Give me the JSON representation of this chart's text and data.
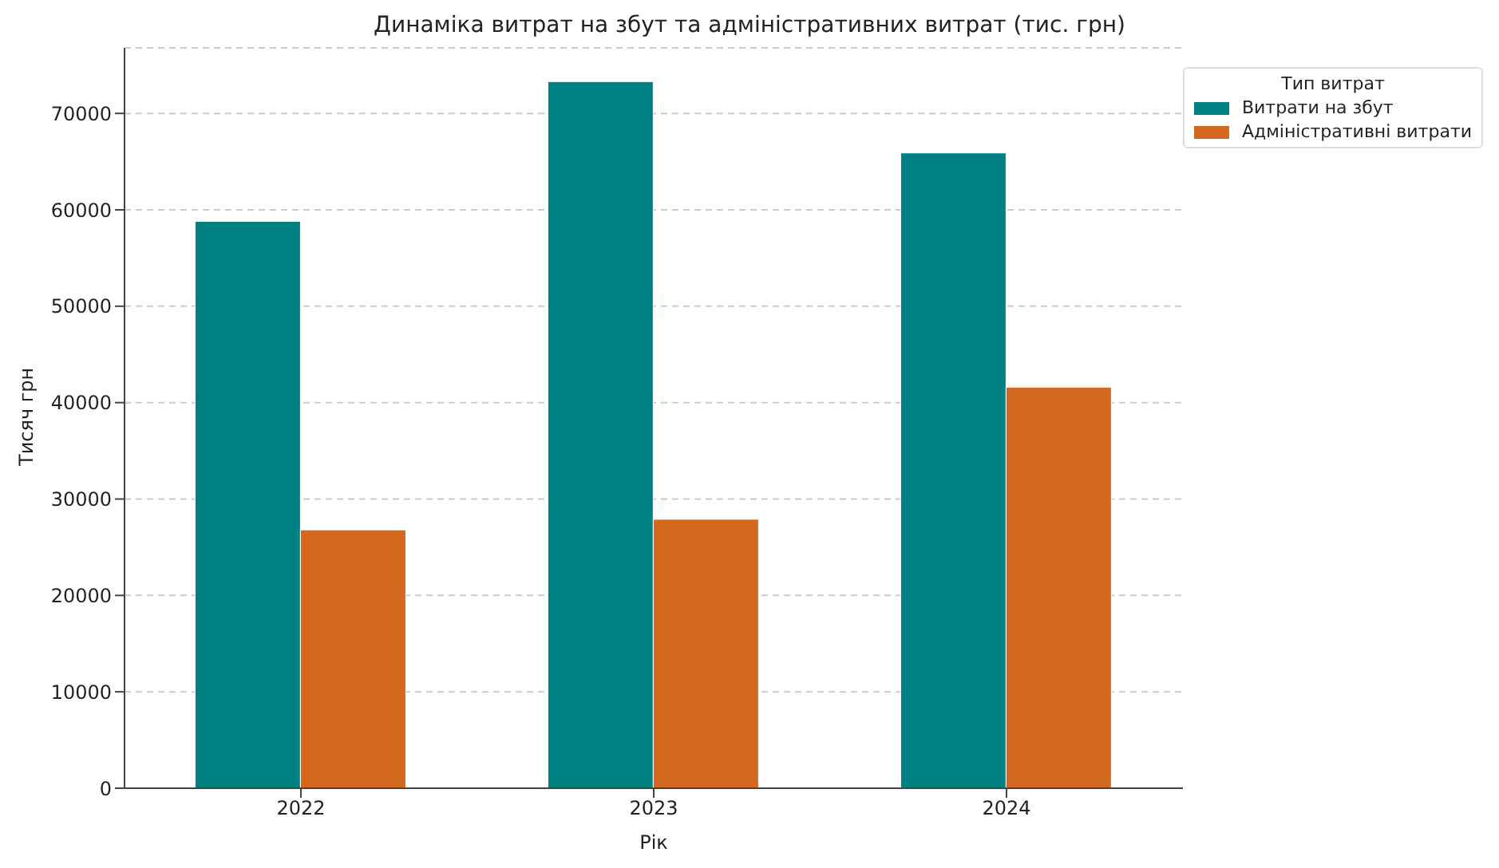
{
  "chart_data": {
    "type": "bar",
    "title": "Динаміка витрат на збут та адміністративних витрат (тис. грн)",
    "xlabel": "Рік",
    "ylabel": "Тисяч грн",
    "legend_title": "Тип витрат",
    "categories": [
      "2022",
      "2023",
      "2024"
    ],
    "series": [
      {
        "name": "Витрати на збут",
        "color": "#008080",
        "values": [
          58800,
          73300,
          65900
        ]
      },
      {
        "name": "Адміністративні витрати",
        "color": "#d2691e",
        "values": [
          26800,
          27900,
          41600
        ]
      }
    ],
    "ylim": [
      0,
      76800
    ],
    "yticks": [
      0,
      10000,
      20000,
      30000,
      40000,
      50000,
      60000,
      70000
    ],
    "grid": "y",
    "legend": "top right"
  }
}
